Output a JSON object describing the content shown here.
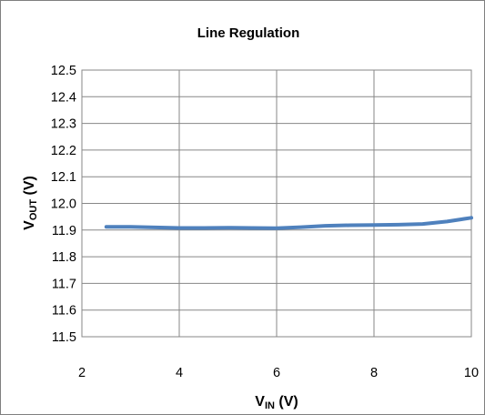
{
  "chart_data": {
    "type": "line",
    "title": "Line Regulation",
    "xlabel": {
      "main": "V",
      "sub": "IN",
      "unit": " (V)"
    },
    "ylabel": {
      "main": "V",
      "sub": "OUT",
      "unit": " (V)"
    },
    "xlim": [
      2,
      10
    ],
    "ylim": [
      11.5,
      12.5
    ],
    "xticks": [
      2,
      4,
      6,
      8,
      10
    ],
    "xtick_labels": [
      "2",
      "4",
      "6",
      "8",
      "10"
    ],
    "yticks": [
      11.5,
      11.6,
      11.7,
      11.8,
      11.9,
      12.0,
      12.1,
      12.2,
      12.3,
      12.4,
      12.5
    ],
    "ytick_labels": [
      "11.5",
      "11.6",
      "11.7",
      "11.8",
      "11.9",
      "12.0",
      "12.1",
      "12.2",
      "12.3",
      "12.4",
      "12.5"
    ],
    "grid": true,
    "line_color": "#4f81bd",
    "series": [
      {
        "x": [
          2.5,
          3.0,
          3.5,
          4.0,
          4.5,
          5.0,
          5.5,
          6.0,
          6.5,
          7.0,
          7.5,
          8.0,
          8.5,
          9.0,
          9.5,
          10.0
        ],
        "values": [
          11.912,
          11.912,
          11.91,
          11.908,
          11.908,
          11.909,
          11.908,
          11.907,
          11.911,
          11.916,
          11.918,
          11.919,
          11.92,
          11.923,
          11.932,
          11.946
        ]
      }
    ]
  }
}
